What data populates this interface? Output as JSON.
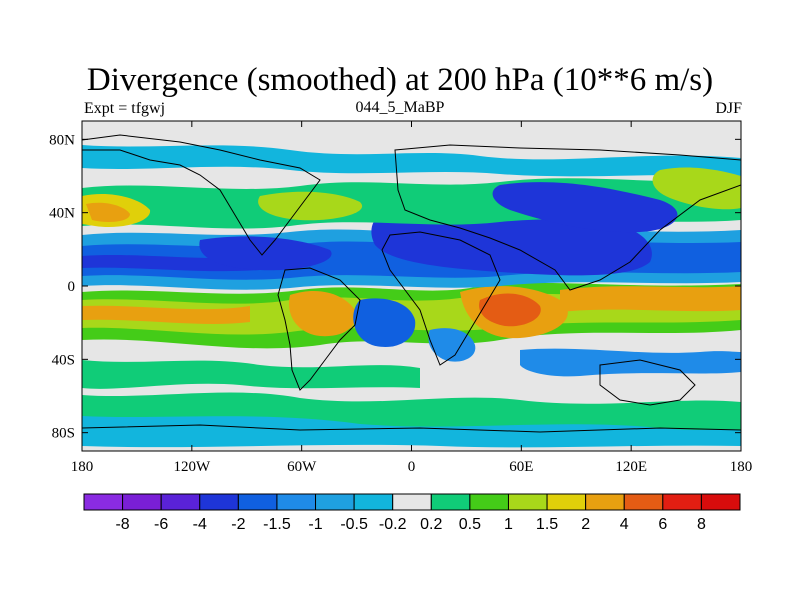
{
  "chart_data": {
    "type": "heatmap",
    "title": "Divergence (smoothed) at 200 hPa (10**6 m/s)",
    "left_label": "Expt = tfgwj",
    "center_label": "044_5_MaBP",
    "right_label": "DJF",
    "x_ticks": [
      "180",
      "120W",
      "60W",
      "0",
      "60E",
      "120E",
      "180"
    ],
    "x_tick_values": [
      -180,
      -120,
      -60,
      0,
      60,
      120,
      180
    ],
    "y_ticks": [
      "80N",
      "40N",
      "0",
      "40S",
      "80S"
    ],
    "y_tick_values": [
      80,
      40,
      0,
      -40,
      -80
    ],
    "xlim": [
      -180,
      180
    ],
    "ylim": [
      -90,
      90
    ],
    "colorbar": {
      "labels": [
        "-8",
        "-6",
        "-4",
        "-2",
        "-1.5",
        "-1",
        "-0.5",
        "-0.2",
        "0.2",
        "0.5",
        "1",
        "1.5",
        "2",
        "4",
        "6",
        "8"
      ],
      "colors": [
        "#8a2be2",
        "#7a1fd6",
        "#5a22d8",
        "#1e35d8",
        "#1060e0",
        "#1f8be8",
        "#1fa0e0",
        "#12b5dd",
        "#e6e6e6",
        "#10cc78",
        "#44cc18",
        "#a8d81a",
        "#e0d00a",
        "#e8a010",
        "#e45c14",
        "#e21e12",
        "#d80c0c"
      ]
    },
    "features": [
      {
        "name": "tropical convergence band",
        "lon": [
          -180,
          180
        ],
        "lat": [
          0,
          12
        ],
        "value": -4
      },
      {
        "name": "south tropical divergence band",
        "lon": [
          -180,
          180
        ],
        "lat": [
          -25,
          -5
        ],
        "value": 2
      },
      {
        "name": "asian jet convergence",
        "lon": [
          -10,
          110
        ],
        "lat": [
          15,
          45
        ],
        "value": -4
      },
      {
        "name": "indian ocean divergence max",
        "lon": [
          40,
          100
        ],
        "lat": [
          -25,
          0
        ],
        "value": 4
      }
    ]
  }
}
